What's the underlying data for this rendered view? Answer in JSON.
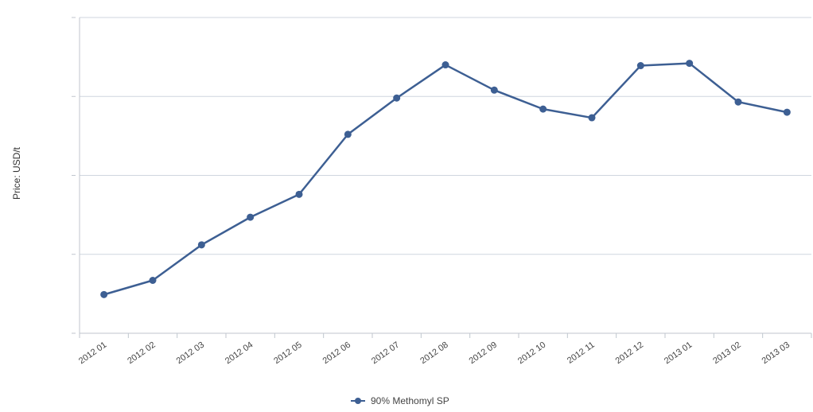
{
  "chart_data": {
    "type": "line",
    "title": "",
    "xlabel": "",
    "ylabel": "Price: USD/t",
    "categories": [
      "2012 01",
      "2012 02",
      "2012 03",
      "2012 04",
      "2012 05",
      "2012 06",
      "2012 07",
      "2012 08",
      "2012 09",
      "2012 10",
      "2012 11",
      "2012 12",
      "2013 01",
      "2013 02",
      "2013 03"
    ],
    "series": [
      {
        "name": "90% Methomyl SP",
        "color": "#3d5f93",
        "values": [
          0.49,
          0.67,
          1.12,
          1.47,
          1.76,
          2.52,
          2.98,
          3.4,
          3.08,
          2.84,
          2.73,
          3.39,
          3.42,
          2.93,
          2.8
        ]
      }
    ],
    "ylim": [
      0,
      4
    ],
    "grid": true,
    "legend": "bottom-center",
    "gridline_color": "#cfd6df",
    "axis_color": "#c0c6ce"
  }
}
